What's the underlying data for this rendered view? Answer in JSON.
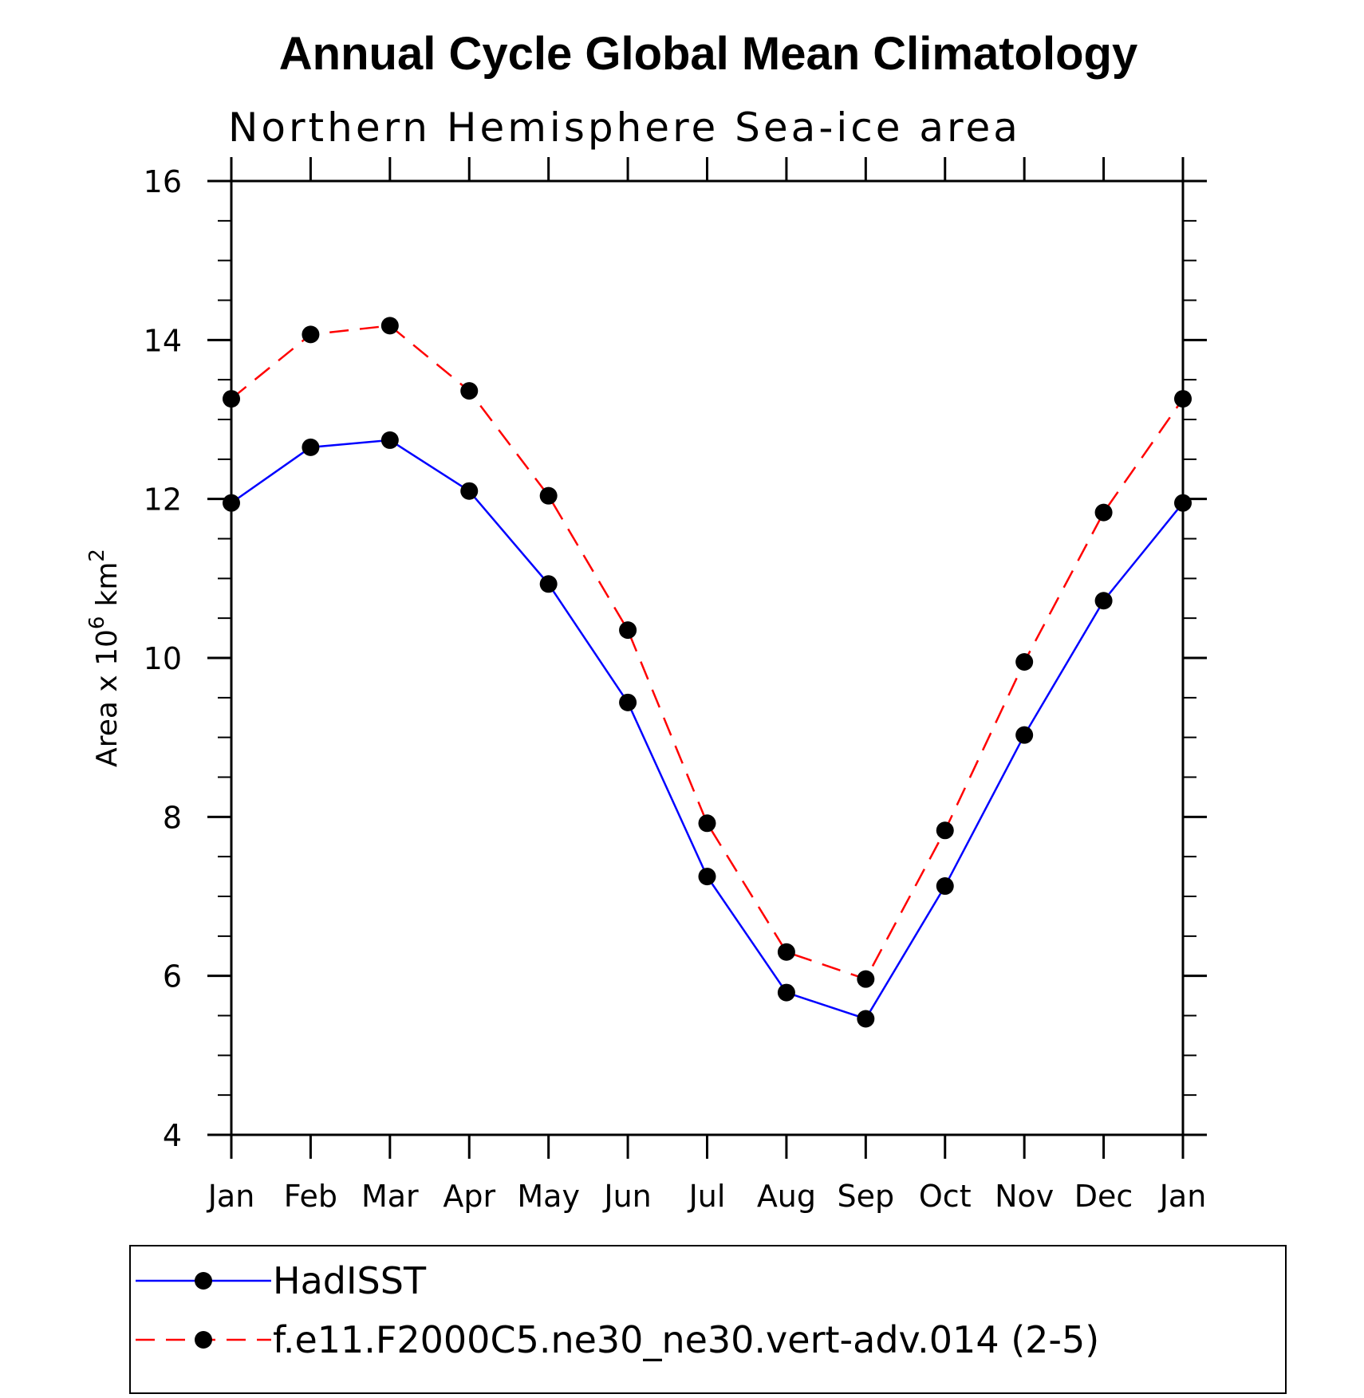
{
  "chart_data": {
    "type": "line",
    "title": "Annual Cycle Global Mean Climatology",
    "subtitle": "Northern Hemisphere Sea-ice area",
    "ylabel": "Area x 10",
    "ylabel_exponent": "6",
    "ylabel_unit": "km",
    "ylabel_unit_exponent": "2",
    "xlabel": "",
    "ylim": [
      4,
      16
    ],
    "yticks": [
      "4",
      "6",
      "8",
      "10",
      "12",
      "14",
      "16"
    ],
    "categories": [
      "Jan",
      "Feb",
      "Mar",
      "Apr",
      "May",
      "Jun",
      "Jul",
      "Aug",
      "Sep",
      "Oct",
      "Nov",
      "Dec",
      "Jan"
    ],
    "series": [
      {
        "name": "HadISST",
        "color": "#0000ff",
        "dash": "solid",
        "marker": "filled-circle",
        "values": [
          11.95,
          12.65,
          12.74,
          12.1,
          10.93,
          9.44,
          7.25,
          5.79,
          5.46,
          7.13,
          9.03,
          10.72,
          11.95
        ]
      },
      {
        "name": "f.e11.F2000C5.ne30_ne30.vert-adv.014 (2-5)",
        "color": "#ff0000",
        "dash": "dashed",
        "marker": "filled-circle",
        "values": [
          13.26,
          14.07,
          14.18,
          13.36,
          12.04,
          10.35,
          7.92,
          6.3,
          5.96,
          7.83,
          9.95,
          11.83,
          13.26
        ]
      }
    ],
    "legend_position": "bottom",
    "grid": false
  }
}
